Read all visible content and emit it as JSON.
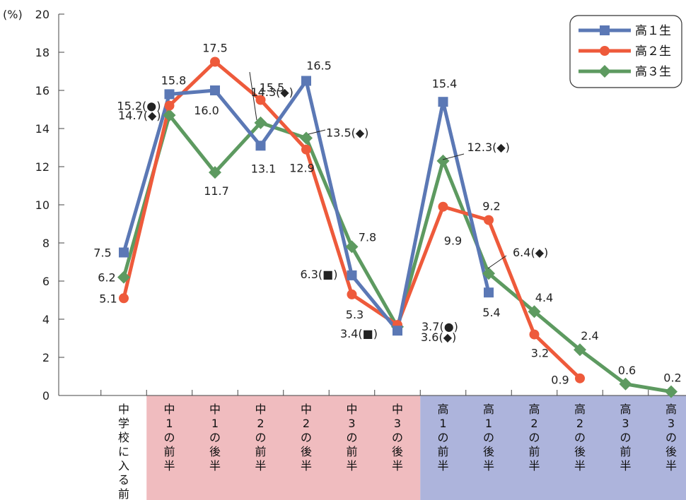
{
  "chart_data": {
    "type": "line",
    "ylabel": "(%)",
    "ylim": [
      0,
      20
    ],
    "yticks": [
      0,
      2,
      4,
      6,
      8,
      10,
      12,
      14,
      16,
      18,
      20
    ],
    "grid": false,
    "legend_position": "top-right",
    "categories": [
      "中学校に入る前",
      "中1の前半",
      "中1の後半",
      "中2の前半",
      "中2の後半",
      "中3の前半",
      "中3の後半",
      "高1の前半",
      "高1の後半",
      "高2の前半",
      "高2の後半",
      "高3の前半",
      "高3の後半"
    ],
    "category_bands": [
      {
        "range": [
          1,
          6
        ],
        "color": "#f0bcbf"
      },
      {
        "range": [
          7,
          12
        ],
        "color": "#adb4dc"
      }
    ],
    "series": [
      {
        "name": "高１生",
        "color": "#5b78b5",
        "marker": "square",
        "values": [
          7.5,
          15.8,
          16.0,
          13.1,
          16.5,
          6.3,
          3.4,
          15.4,
          5.4,
          null,
          null,
          null,
          null
        ],
        "labels": [
          "7.5",
          "15.8",
          "16.0",
          "13.1",
          "16.5",
          "6.3(■)",
          "3.4(■)",
          "15.4",
          "5.4",
          null,
          null,
          null,
          null
        ]
      },
      {
        "name": "高２生",
        "color": "#ee5a3b",
        "marker": "circle",
        "values": [
          5.1,
          15.2,
          17.5,
          15.5,
          12.9,
          5.3,
          3.7,
          9.9,
          9.2,
          3.2,
          0.9,
          null,
          null
        ],
        "labels": [
          "5.1",
          "15.2(●)",
          "17.5",
          "15.5",
          "12.9",
          "5.3",
          "3.7(●)",
          "9.9",
          "9.2",
          "3.2",
          "0.9",
          null,
          null
        ]
      },
      {
        "name": "高３生",
        "color": "#5d9a60",
        "marker": "diamond",
        "values": [
          6.2,
          14.7,
          11.7,
          14.3,
          13.5,
          7.8,
          3.6,
          12.3,
          6.4,
          4.4,
          2.4,
          0.6,
          0.2
        ],
        "labels": [
          "6.2",
          "14.7(◆)",
          "11.7",
          "14.3(◆)",
          "13.5(◆)",
          "7.8",
          "3.6(◆)",
          "12.3(◆)",
          "6.4(◆)",
          "4.4",
          "2.4",
          "0.6",
          "0.2"
        ]
      }
    ]
  }
}
